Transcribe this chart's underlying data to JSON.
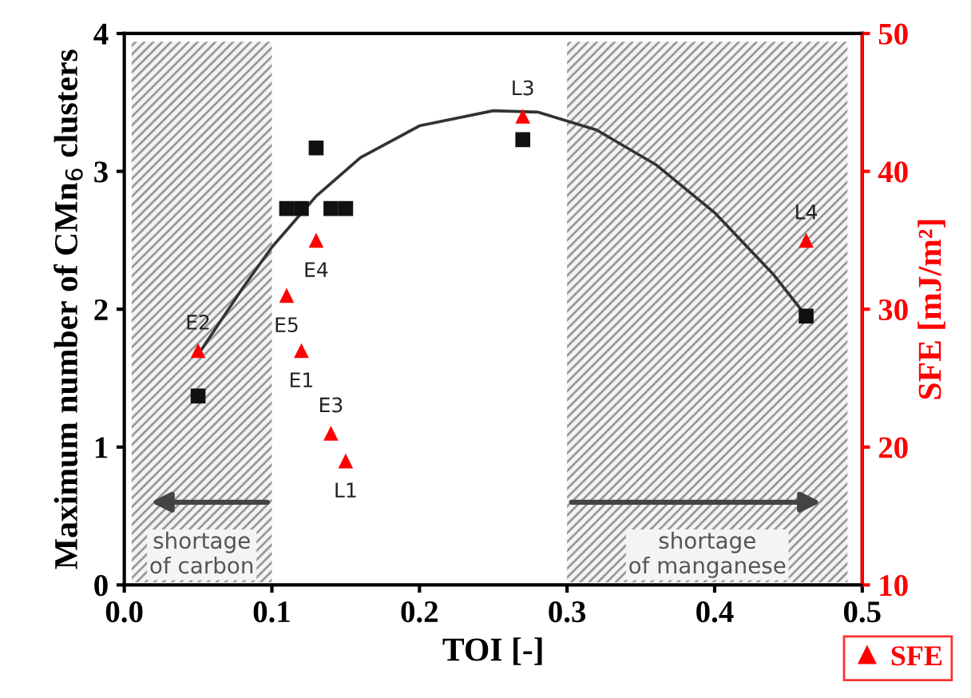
{
  "chart_data": {
    "type": "scatter",
    "xlabel": "TOI [-]",
    "ylabel": "Maximum number of CMn$_{6}$ clusters",
    "y2label": "SFE [mJ/m²]",
    "xlim": [
      0.0,
      0.5
    ],
    "xticks": [
      {
        "value": 0.0,
        "label": "0.0"
      },
      0.1,
      0.2,
      0.3,
      0.4,
      0.5
    ],
    "ylim": [
      0,
      4
    ],
    "yticks": [
      0,
      1,
      2,
      3,
      4
    ],
    "y2lim": [
      10,
      50
    ],
    "y2ticks": [
      10,
      20,
      30,
      40,
      50
    ],
    "grid": false,
    "legend": "bottom right",
    "series": [
      {
        "marker": "square",
        "color": "#111111",
        "x": [
          0.05,
          0.11,
          0.12,
          0.13,
          0.14,
          0.15,
          0.27,
          0.462
        ],
        "values": [
          1.37,
          2.73,
          2.73,
          3.17,
          2.73,
          2.73,
          3.23,
          1.95
        ]
      },
      {
        "name": "SFE",
        "marker": "triangle",
        "color": "#ff0000",
        "axis": "y2",
        "x": [
          0.05,
          0.11,
          0.12,
          0.13,
          0.14,
          0.15,
          0.27,
          0.462
        ],
        "values": [
          27,
          31,
          27,
          35,
          21,
          19,
          44,
          35
        ]
      },
      {
        "type": "line",
        "color": "#333333",
        "x": [
          0.05,
          0.08,
          0.1,
          0.13,
          0.16,
          0.2,
          0.25,
          0.28,
          0.32,
          0.36,
          0.4,
          0.44,
          0.462
        ],
        "values": [
          1.67,
          2.15,
          2.45,
          2.82,
          3.1,
          3.33,
          3.44,
          3.43,
          3.3,
          3.05,
          2.7,
          2.25,
          1.95
        ]
      }
    ],
    "bands": [
      {
        "axis": "x",
        "from": 0.005,
        "to": 0.1,
        "label": "shortage\nof carbon",
        "color": "#999999"
      },
      {
        "axis": "x",
        "from": 0.3,
        "to": 0.49,
        "label": "shortage\nof manganese",
        "color": "#999999"
      }
    ],
    "annotations": [
      "E2",
      "E5",
      "E1",
      "E4",
      "E3",
      "L1",
      "L3",
      "L4"
    ]
  }
}
